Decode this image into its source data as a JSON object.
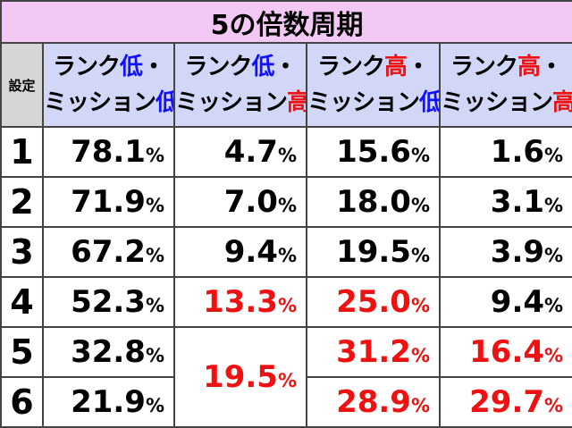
{
  "title": "5の倍数周期",
  "header": {
    "setting": "設定",
    "columns": [
      {
        "line1_prefix": "ランク",
        "line1_key": "低",
        "line1_color": "blue",
        "line2_prefix": "ミッション",
        "line2_key": "低",
        "line2_color": "blue"
      },
      {
        "line1_prefix": "ランク",
        "line1_key": "低",
        "line1_color": "blue",
        "line2_prefix": "ミッション",
        "line2_key": "高",
        "line2_color": "red"
      },
      {
        "line1_prefix": "ランク",
        "line1_key": "高",
        "line1_color": "red",
        "line2_prefix": "ミッション",
        "line2_key": "低",
        "line2_color": "blue"
      },
      {
        "line1_prefix": "ランク",
        "line1_key": "高",
        "line1_color": "red",
        "line2_prefix": "ミッション",
        "line2_key": "高",
        "line2_color": "red"
      }
    ],
    "dot": "・"
  },
  "percent_sign": "%",
  "rows": [
    {
      "setting": "1",
      "c1": "78.1",
      "c2": "4.7",
      "c3": "15.6",
      "c4": "1.6"
    },
    {
      "setting": "2",
      "c1": "71.9",
      "c2": "7.0",
      "c3": "18.0",
      "c4": "3.1"
    },
    {
      "setting": "3",
      "c1": "67.2",
      "c2": "9.4",
      "c3": "19.5",
      "c4": "3.9"
    },
    {
      "setting": "4",
      "c1": "52.3",
      "c2": "13.3",
      "c3": "25.0",
      "c4": "9.4"
    },
    {
      "setting": "5",
      "c1": "32.8",
      "c2": "19.5",
      "c3": "31.2",
      "c4": "16.4"
    },
    {
      "setting": "6",
      "c1": "21.9",
      "c3": "28.9",
      "c4": "29.7"
    }
  ],
  "colors": {
    "title_bg": "#f4c8f4",
    "header_bg": "#d2d6f7",
    "setting_header_bg": "#d6d6d6",
    "highlight": "#ee1111",
    "accent_blue": "#1111ff"
  }
}
